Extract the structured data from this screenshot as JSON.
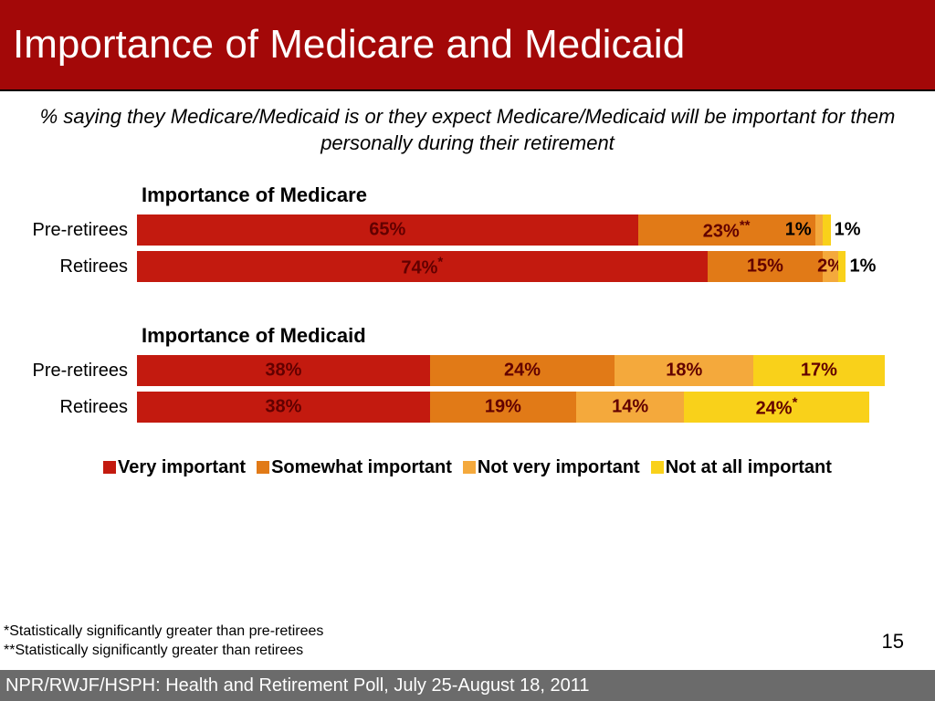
{
  "header": {
    "title": "Importance of Medicare and Medicaid",
    "background_color": "#a30808",
    "text_color": "#ffffff"
  },
  "subtitle": "% saying they Medicare/Medicaid is or they expect Medicare/Medicaid will be important for them personally during their retirement",
  "colors": {
    "very_important": "#c31a0f",
    "somewhat_important": "#e17a17",
    "not_very_important": "#f4a93c",
    "not_at_all_important": "#f9d11a",
    "value_dark": "#620000"
  },
  "charts": [
    {
      "title": "Importance of Medicare",
      "rows": [
        {
          "label": "Pre-retirees",
          "bar_total_pct": 90,
          "segments": [
            {
              "key": "very_important",
              "value": 65,
              "display": "65%",
              "star": ""
            },
            {
              "key": "somewhat_important",
              "value": 23,
              "display": "23%",
              "star": "**"
            },
            {
              "key": "not_very_important",
              "value": 1,
              "display": "1%",
              "star": "",
              "outside_before": true
            },
            {
              "key": "not_at_all_important",
              "value": 1,
              "display": "1%",
              "star": "",
              "outside_after": true
            }
          ]
        },
        {
          "label": "Retirees",
          "bar_total_pct": 92,
          "segments": [
            {
              "key": "very_important",
              "value": 74,
              "display": "74%",
              "star": "*"
            },
            {
              "key": "somewhat_important",
              "value": 15,
              "display": "15%",
              "star": ""
            },
            {
              "key": "not_very_important",
              "value": 2,
              "display": "2%",
              "star": ""
            },
            {
              "key": "not_at_all_important",
              "value": 1,
              "display": "1%",
              "star": "",
              "outside_after": true
            }
          ]
        }
      ]
    },
    {
      "title": "Importance of Medicaid",
      "rows": [
        {
          "label": "Pre-retirees",
          "bar_total_pct": 97,
          "segments": [
            {
              "key": "very_important",
              "value": 38,
              "display": "38%",
              "star": ""
            },
            {
              "key": "somewhat_important",
              "value": 24,
              "display": "24%",
              "star": ""
            },
            {
              "key": "not_very_important",
              "value": 18,
              "display": "18%",
              "star": ""
            },
            {
              "key": "not_at_all_important",
              "value": 17,
              "display": "17%",
              "star": ""
            }
          ]
        },
        {
          "label": "Retirees",
          "bar_total_pct": 95,
          "segments": [
            {
              "key": "very_important",
              "value": 38,
              "display": "38%",
              "star": ""
            },
            {
              "key": "somewhat_important",
              "value": 19,
              "display": "19%",
              "star": ""
            },
            {
              "key": "not_very_important",
              "value": 14,
              "display": "14%",
              "star": ""
            },
            {
              "key": "not_at_all_important",
              "value": 24,
              "display": "24%",
              "star": "*"
            }
          ]
        }
      ]
    }
  ],
  "legend": [
    {
      "key": "very_important",
      "label": "Very important"
    },
    {
      "key": "somewhat_important",
      "label": "Somewhat important"
    },
    {
      "key": "not_very_important",
      "label": "Not very important"
    },
    {
      "key": "not_at_all_important",
      "label": "Not at all important"
    }
  ],
  "footnotes": [
    "*Statistically significantly greater than pre-retirees",
    "**Statistically significantly greater than retirees"
  ],
  "page_number": "15",
  "footer": "NPR/RWJF/HSPH: Health and Retirement Poll, July 25-August 18, 2011"
}
